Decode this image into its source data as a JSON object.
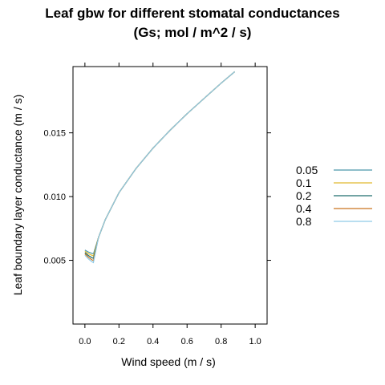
{
  "chart_data": {
    "type": "line",
    "title": [
      "Leaf gbw for different stomatal conductances",
      "(Gs; mol / m^2 / s)"
    ],
    "xlabel": "Wind speed (m / s)",
    "ylabel": "Leaf boundary layer conductance (m / s)",
    "xlim": [
      -0.07,
      1.07
    ],
    "ylim": [
      0.0,
      0.0202
    ],
    "x_ticks": [
      0.0,
      0.2,
      0.4,
      0.6,
      0.8,
      1.0
    ],
    "x_tick_labels": [
      "0.0",
      "0.2",
      "0.4",
      "0.6",
      "0.8",
      "1.0"
    ],
    "y_ticks": [
      0.005,
      0.01,
      0.015
    ],
    "y_tick_labels": [
      "0.005",
      "0.010",
      "0.015"
    ],
    "grid": false,
    "legend_position": "right",
    "series": [
      {
        "name": "0.05",
        "color": "#4b97ab",
        "x": [
          0.0,
          0.02,
          0.04,
          0.05,
          0.08,
          0.12,
          0.2,
          0.3,
          0.4,
          0.5,
          0.6,
          0.7,
          0.8,
          0.88
        ],
        "y": [
          0.0058,
          0.00565,
          0.00555,
          0.0055,
          0.0068,
          0.0082,
          0.0103,
          0.0122,
          0.0138,
          0.0152,
          0.0165,
          0.0177,
          0.0189,
          0.0198
        ]
      },
      {
        "name": "0.1",
        "color": "#e1b92f",
        "x": [
          0.0,
          0.02,
          0.04,
          0.05,
          0.08,
          0.12,
          0.2,
          0.3,
          0.4,
          0.5,
          0.6,
          0.7,
          0.8,
          0.88
        ],
        "y": [
          0.0057,
          0.00552,
          0.0054,
          0.00535,
          0.0068,
          0.0082,
          0.0103,
          0.0122,
          0.0138,
          0.0152,
          0.0165,
          0.0177,
          0.0189,
          0.0198
        ]
      },
      {
        "name": "0.2",
        "color": "#1f6e6e",
        "x": [
          0.0,
          0.02,
          0.04,
          0.05,
          0.08,
          0.12,
          0.2,
          0.3,
          0.4,
          0.5,
          0.6,
          0.7,
          0.8,
          0.88
        ],
        "y": [
          0.0056,
          0.00538,
          0.00522,
          0.00515,
          0.0068,
          0.0082,
          0.0103,
          0.0122,
          0.0138,
          0.0152,
          0.0165,
          0.0177,
          0.0189,
          0.0198
        ]
      },
      {
        "name": "0.4",
        "color": "#c9741d",
        "x": [
          0.0,
          0.02,
          0.04,
          0.05,
          0.08,
          0.12,
          0.2,
          0.3,
          0.4,
          0.5,
          0.6,
          0.7,
          0.8,
          0.88
        ],
        "y": [
          0.0055,
          0.00525,
          0.00505,
          0.00498,
          0.0068,
          0.0082,
          0.0103,
          0.0122,
          0.0138,
          0.0152,
          0.0165,
          0.0177,
          0.0189,
          0.0198
        ]
      },
      {
        "name": "0.8",
        "color": "#8fcbe8",
        "x": [
          0.0,
          0.02,
          0.04,
          0.05,
          0.08,
          0.12,
          0.2,
          0.3,
          0.4,
          0.5,
          0.6,
          0.7,
          0.8,
          0.88
        ],
        "y": [
          0.0054,
          0.00512,
          0.0049,
          0.00482,
          0.0068,
          0.0082,
          0.0103,
          0.0122,
          0.0138,
          0.0152,
          0.0165,
          0.0177,
          0.0189,
          0.0198
        ]
      }
    ]
  }
}
